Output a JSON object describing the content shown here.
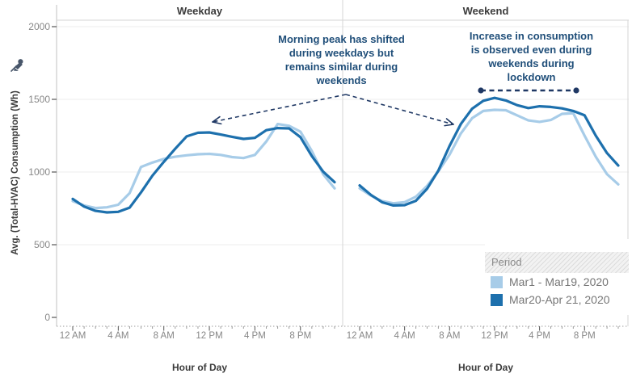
{
  "panels": [
    {
      "title": "Weekday"
    },
    {
      "title": "Weekend"
    }
  ],
  "y_axis": {
    "title": "Avg. (Total-HVAC) Consumption (Wh)",
    "ticks": [
      0,
      500,
      1000,
      1500,
      2000
    ],
    "pinned": true
  },
  "x_axis": {
    "title": "Hour of Day",
    "tick_labels": [
      "12 AM",
      "4 AM",
      "8 AM",
      "12 PM",
      "4 PM",
      "8 PM"
    ],
    "tick_hours": [
      0,
      4,
      8,
      12,
      16,
      20
    ]
  },
  "legend": {
    "title": "Period",
    "items": [
      {
        "label": "Mar1 - Mar19, 2020",
        "color": "#a7cce8"
      },
      {
        "label": "Mar20-Apr 21, 2020",
        "color": "#1d70ad"
      }
    ]
  },
  "annotations": {
    "weekday": {
      "text": "Morning peak has shifted\nduring weekdays but\nremains similar during\nweekends"
    },
    "weekend": {
      "text": "Increase in consumption\nis observed even during\nweekends during\nlockdown"
    }
  },
  "colors": {
    "series_light": "#a7cce8",
    "series_dark": "#1d70ad",
    "annotation_text": "#1f4e79",
    "annotation_line": "#1f3864",
    "grid": "#ececec",
    "border": "#d6d6d6",
    "axis_line": "#c2c2c2",
    "tick_major": "#555555",
    "tick_minor": "#9a9a9a",
    "axis_text": "#878787",
    "title_text": "#3b3b3b",
    "pin": "#48566a"
  },
  "chart_data": {
    "type": "line",
    "x_hours": [
      0,
      1,
      2,
      3,
      4,
      5,
      6,
      7,
      8,
      9,
      10,
      11,
      12,
      13,
      14,
      15,
      16,
      17,
      18,
      19,
      20,
      21,
      22,
      23
    ],
    "xlabel": "Hour of Day",
    "ylabel": "Avg. (Total-HVAC) Consumption (Wh)",
    "ylim": [
      0,
      2000
    ],
    "legend_position": "bottom-right",
    "grid": "horizontal",
    "panels": [
      {
        "title": "Weekday",
        "series": [
          {
            "name": "Mar1 - Mar19, 2020",
            "values": [
              800,
              770,
              752,
              757,
              775,
              855,
              1035,
              1065,
              1090,
              1105,
              1115,
              1122,
              1125,
              1118,
              1103,
              1096,
              1118,
              1210,
              1330,
              1318,
              1278,
              1145,
              985,
              888
            ]
          },
          {
            "name": "Mar20-Apr 21, 2020",
            "values": [
              815,
              762,
              733,
              722,
              726,
              755,
              860,
              975,
              1070,
              1160,
              1245,
              1270,
              1272,
              1258,
              1242,
              1228,
              1235,
              1288,
              1302,
              1300,
              1240,
              1110,
              1002,
              930
            ]
          }
        ]
      },
      {
        "title": "Weekend",
        "series": [
          {
            "name": "Mar1 - Mar19, 2020",
            "values": [
              888,
              838,
              800,
              785,
              793,
              830,
              905,
              1005,
              1120,
              1265,
              1370,
              1420,
              1428,
              1425,
              1390,
              1355,
              1345,
              1358,
              1400,
              1405,
              1250,
              1105,
              985,
              915
            ]
          },
          {
            "name": "Mar20-Apr 21, 2020",
            "values": [
              908,
              843,
              792,
              770,
              772,
              802,
              885,
              1010,
              1180,
              1330,
              1435,
              1490,
              1510,
              1492,
              1460,
              1440,
              1452,
              1448,
              1438,
              1420,
              1390,
              1250,
              1130,
              1045
            ]
          }
        ]
      }
    ]
  }
}
